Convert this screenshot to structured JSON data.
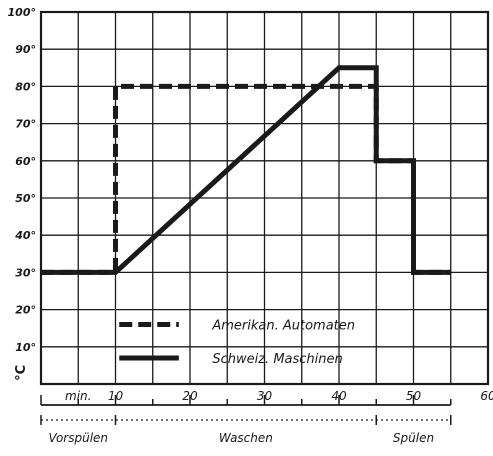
{
  "chart_data": {
    "type": "line",
    "title": "",
    "xlabel": "",
    "ylabel": "°C",
    "xlim": [
      0,
      60
    ],
    "ylim": [
      0,
      100
    ],
    "grid": true,
    "x_ticks": [
      10,
      20,
      30,
      40,
      50,
      60
    ],
    "x_tick_labels": [
      "10",
      "20",
      "30",
      "40",
      "50",
      "60"
    ],
    "y_ticks": [
      10,
      20,
      30,
      40,
      50,
      60,
      70,
      80,
      90,
      100
    ],
    "y_tick_labels": [
      "10°",
      "20°",
      "30°",
      "40°",
      "50°",
      "60°",
      "70°",
      "80°",
      "90°",
      "100°"
    ],
    "x_unit_label": "min.",
    "phases": [
      {
        "label": "Vorspülen",
        "x_range": [
          0,
          10
        ]
      },
      {
        "label": "Waschen",
        "x_range": [
          10,
          45
        ]
      },
      {
        "label": "Spülen",
        "x_range": [
          45,
          55
        ]
      }
    ],
    "series": [
      {
        "name": "Amerikan. Automaten",
        "style": "dashed",
        "color": "#1a1a1a",
        "x": [
          0,
          10,
          10,
          45,
          45,
          50,
          50,
          55
        ],
        "y": [
          30,
          30,
          80,
          80,
          60,
          60,
          30,
          30
        ]
      },
      {
        "name": "Schweiz. Maschinen",
        "style": "solid",
        "color": "#1a1a1a",
        "x": [
          0,
          10,
          40,
          45,
          45,
          50,
          50,
          55
        ],
        "y": [
          30,
          30,
          85,
          85,
          60,
          60,
          30,
          30
        ]
      }
    ],
    "legend_position": "bottom-center"
  }
}
